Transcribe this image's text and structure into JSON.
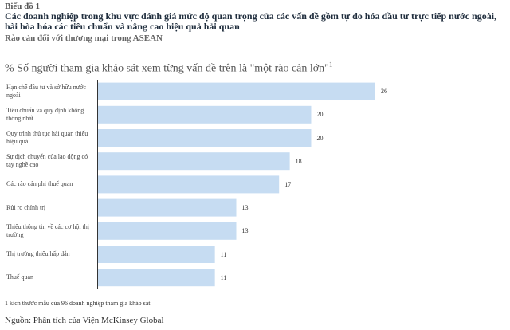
{
  "chart_data": {
    "type": "barh",
    "kicker": "Biểu đồ 1",
    "title": "Các doanh nghiệp trong khu vực đánh giá mức độ quan trọng của các vấn đề gồm tự do hóa đầu tư trực tiếp nước ngoài, hài hòa hóa các tiêu chuẩn và nâng cao hiệu quả hải quan",
    "subtitle": "Rào cản đối với thương mại trong ASEAN",
    "value_label": "% Số người tham gia khảo sát xem từng vấn đề trên là \"một rào cản lớn\"",
    "value_label_note": "1",
    "categories": [
      "Hạn chế đầu tư và sở hữu nước ngoài",
      "Tiêu chuẩn và quy định không thống nhất",
      "Quy trình thủ tục hải quan thiếu hiệu quả",
      "Sự dịch chuyển của lao động có tay nghề cao",
      "Các rào cản phi thuế quan",
      "Rủi ro chính trị",
      "Thiếu thông tin về các cơ hội thị trường",
      "Thị trường thiếu hấp dẫn",
      "Thuế quan"
    ],
    "values": [
      26,
      20,
      20,
      18,
      17,
      13,
      13,
      11,
      11
    ],
    "color": "#c6dcf2",
    "footnote": "1 kích thước mẫu của 96 doanh nghiệp tham gia khảo sát.",
    "source": "Nguồn: Phân tích của Viện McKinsey Global"
  }
}
